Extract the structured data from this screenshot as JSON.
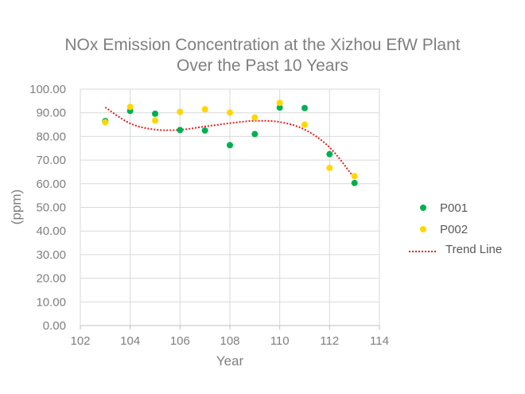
{
  "chart_data": {
    "type": "scatter",
    "title_lines": [
      "NOx Emission Concentration at the Xizhou EfW Plant",
      "Over the Past 10 Years"
    ],
    "xlabel": "Year",
    "ylabel": "(ppm)",
    "xlim": [
      102,
      114
    ],
    "ylim": [
      0,
      100
    ],
    "xticks": [
      "102",
      "104",
      "106",
      "108",
      "110",
      "112",
      "114"
    ],
    "yticks": [
      "0.00",
      "10.00",
      "20.00",
      "30.00",
      "40.00",
      "50.00",
      "60.00",
      "70.00",
      "80.00",
      "90.00",
      "100.00"
    ],
    "grid": true,
    "legend_position": "right",
    "series": [
      {
        "name": "P001",
        "color": "#00b050",
        "x": [
          103,
          104,
          105,
          106,
          107,
          108,
          109,
          110,
          111,
          112,
          113
        ],
        "y": [
          86.5,
          90.8,
          89.6,
          82.7,
          82.5,
          76.3,
          81.0,
          92.2,
          92.0,
          72.5,
          60.3
        ]
      },
      {
        "name": "P002",
        "color": "#ffd700",
        "x": [
          103,
          104,
          105,
          106,
          107,
          108,
          109,
          110,
          111,
          112,
          113
        ],
        "y": [
          86.0,
          92.5,
          86.7,
          90.4,
          91.5,
          90.1,
          88.0,
          94.2,
          85.0,
          66.7,
          63.2
        ]
      }
    ],
    "trend": {
      "name": "Trend Line",
      "color": "#e0201b",
      "x": [
        103,
        104,
        105,
        106,
        107,
        108,
        109,
        110,
        111,
        112,
        113
      ],
      "y": [
        92.3,
        85.5,
        82.9,
        82.8,
        84.2,
        85.6,
        86.6,
        86.1,
        82.9,
        75.4,
        62.3
      ]
    }
  }
}
